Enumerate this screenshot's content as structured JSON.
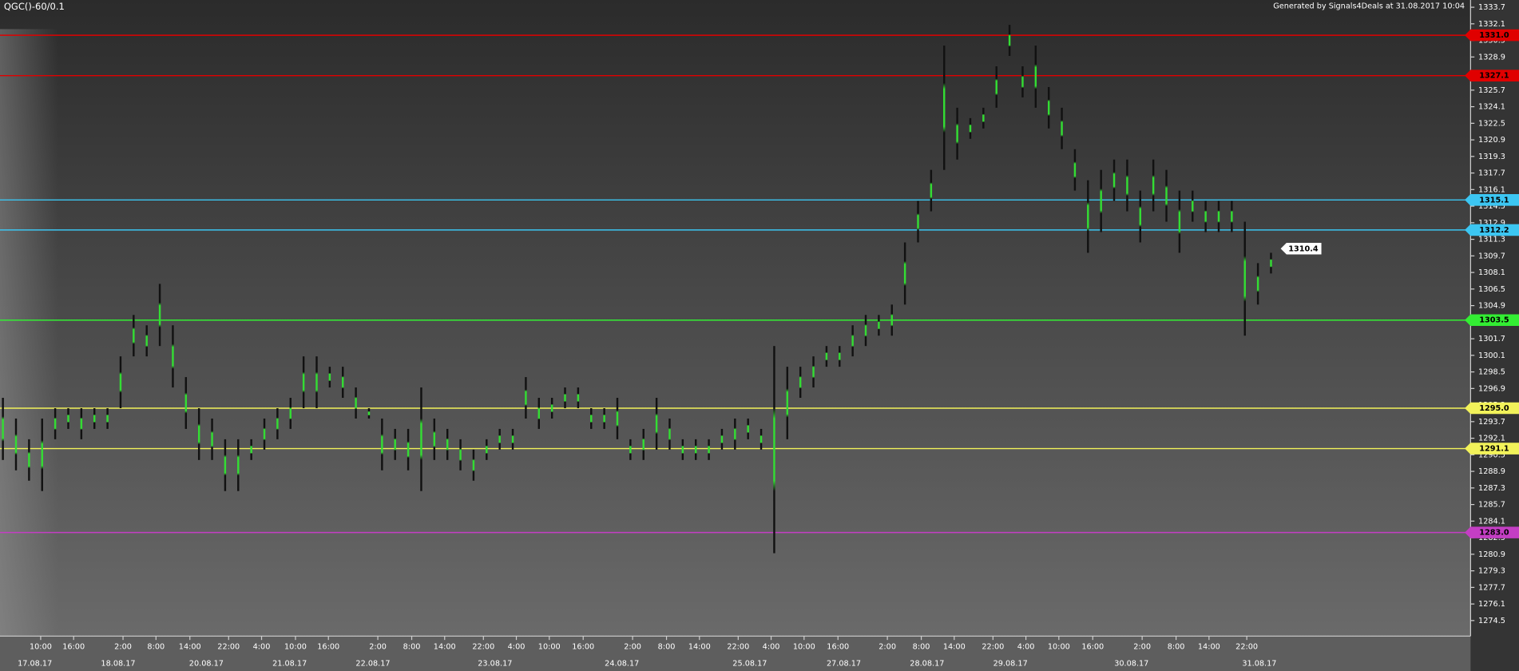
{
  "header": {
    "symbol": "QGC()-60/0.1",
    "generated": "Generated by Signals4Deals at 31.08.2017 10:04"
  },
  "chart_data": {
    "type": "ohlc",
    "series": [
      {
        "color": "#33dd33",
        "wick_color": "#111111",
        "high": [
          1296,
          1294,
          1292,
          1294,
          1295,
          1295,
          1295,
          1295,
          1295,
          1300,
          1304,
          1303,
          1307,
          1303,
          1298,
          1295,
          1294,
          1292,
          1292,
          1292,
          1294,
          1295,
          1296,
          1300,
          1300,
          1299,
          1299,
          1297,
          1295,
          1294,
          1293,
          1293,
          1297,
          1294,
          1293,
          1292,
          1291,
          1292,
          1293,
          1293,
          1298,
          1296,
          1296,
          1297,
          1297,
          1295,
          1295,
          1296,
          1292,
          1293,
          1296,
          1294,
          1292,
          1292,
          1292,
          1293,
          1294,
          1294,
          1293,
          1301,
          1299,
          1299,
          1300,
          1301,
          1301,
          1303,
          1304,
          1304,
          1305,
          1311,
          1315,
          1318,
          1330,
          1324,
          1323,
          1324,
          1328,
          1332,
          1328,
          1330,
          1326,
          1324,
          1320,
          1317,
          1318,
          1319,
          1319,
          1316,
          1319,
          1318,
          1316,
          1316,
          1315,
          1315,
          1315,
          1313,
          1309,
          1310
        ],
        "low": [
          1290,
          1289,
          1288,
          1287,
          1292,
          1293,
          1292,
          1293,
          1293,
          1295,
          1300,
          1300,
          1301,
          1297,
          1293,
          1290,
          1290,
          1287,
          1287,
          1290,
          1291,
          1292,
          1293,
          1295,
          1295,
          1297,
          1296,
          1294,
          1294,
          1289,
          1290,
          1289,
          1287,
          1290,
          1290,
          1289,
          1288,
          1290,
          1291,
          1291,
          1294,
          1293,
          1294,
          1295,
          1295,
          1293,
          1293,
          1292,
          1290,
          1290,
          1291,
          1291,
          1290,
          1290,
          1290,
          1291,
          1291,
          1292,
          1291,
          1281,
          1292,
          1296,
          1297,
          1299,
          1299,
          1300,
          1301,
          1302,
          1302,
          1305,
          1311,
          1314,
          1318,
          1319,
          1321,
          1322,
          1324,
          1329,
          1325,
          1324,
          1322,
          1320,
          1316,
          1310,
          1312,
          1315,
          1314,
          1311,
          1314,
          1313,
          1310,
          1313,
          1312,
          1312,
          1312,
          1302,
          1305,
          1308
        ]
      }
    ],
    "ylim": [
      1273.0,
      1334.4
    ],
    "yticks": [
      1274.5,
      1276.1,
      1277.7,
      1279.3,
      1280.9,
      1282.5,
      1284.1,
      1285.7,
      1287.3,
      1288.9,
      1290.5,
      1292.1,
      1293.7,
      1295.3,
      1296.9,
      1298.5,
      1300.1,
      1301.7,
      1303.3,
      1304.9,
      1306.5,
      1308.1,
      1309.7,
      1311.3,
      1312.9,
      1314.5,
      1316.1,
      1317.7,
      1319.3,
      1320.9,
      1322.5,
      1324.1,
      1325.7,
      1327.3,
      1328.9,
      1330.5,
      1332.1,
      1333.7
    ],
    "levels": [
      {
        "value": 1331,
        "label": "1331.0",
        "color": "#e00000"
      },
      {
        "value": 1327.1,
        "label": "1327.1",
        "color": "#e00000"
      },
      {
        "value": 1315.1,
        "label": "1315.1",
        "color": "#3cc6f2"
      },
      {
        "value": 1312.2,
        "label": "1312.2",
        "color": "#3cc6f2"
      },
      {
        "value": 1303.5,
        "label": "1303.5",
        "color": "#33ee33"
      },
      {
        "value": 1295,
        "label": "1295.0",
        "color": "#f2f25a"
      },
      {
        "value": 1291.1,
        "label": "1291.1",
        "color": "#f2f25a"
      },
      {
        "value": 1283,
        "label": "1283.0",
        "color": "#c43ec4"
      }
    ],
    "last_price": 1310.4,
    "time_labels": [
      "10:00",
      "16:00",
      "2:00",
      "8:00",
      "14:00",
      "22:00",
      "4:00",
      "10:00",
      "16:00",
      "2:00",
      "8:00",
      "14:00",
      "22:00",
      "4:00",
      "10:00",
      "16:00",
      "2:00",
      "8:00",
      "14:00",
      "22:00",
      "4:00",
      "10:00",
      "16:00",
      "2:00",
      "8:00",
      "14:00",
      "22:00",
      "4:00",
      "10:00",
      "16:00",
      "2:00",
      "8:00",
      "14:00",
      "22:00"
    ],
    "date_labels": [
      "17.08.17",
      "18.08.17",
      "20.08.17",
      "21.08.17",
      "22.08.17",
      "23.08.17",
      "24.08.17",
      "25.08.17",
      "27.08.17",
      "28.08.17",
      "29.08.17",
      "30.08.17",
      "31.08.17"
    ]
  }
}
